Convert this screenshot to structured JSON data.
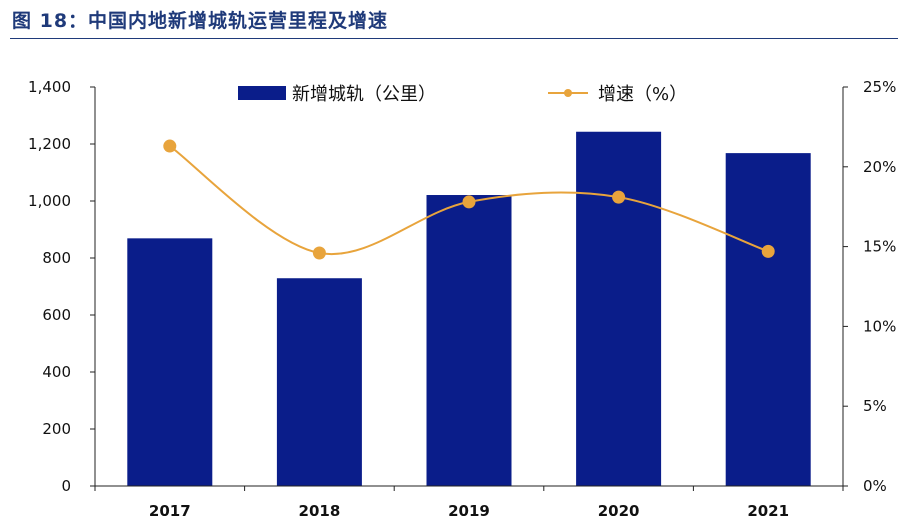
{
  "figure": {
    "title": "图 18：中国内地新增城轨运营里程及增速"
  },
  "colors": {
    "bar": "#0a1d8a",
    "line": "#e8a43c",
    "title": "#1f3a7a",
    "axis": "#222222"
  },
  "chart_data": {
    "type": "bar",
    "title": "图 18：中国内地新增城轨运营里程及增速",
    "categories": [
      "2017",
      "2018",
      "2019",
      "2020",
      "2021"
    ],
    "series": [
      {
        "name": "新增城轨（公里）",
        "type": "bar",
        "axis": "left",
        "values": [
          869,
          729,
          1021,
          1243,
          1168
        ]
      },
      {
        "name": "增速（%）",
        "type": "line",
        "axis": "right",
        "values": [
          21.3,
          14.6,
          17.8,
          18.1,
          14.7
        ]
      }
    ],
    "y_left": {
      "ylim": [
        0,
        1400
      ],
      "ticks": [
        "0",
        "200",
        "400",
        "600",
        "800",
        "1,000",
        "1,200",
        "1,400"
      ],
      "tick_values": [
        0,
        200,
        400,
        600,
        800,
        1000,
        1200,
        1400
      ]
    },
    "y_right": {
      "ylim": [
        0,
        25
      ],
      "ticks": [
        "0%",
        "5%",
        "10%",
        "15%",
        "20%",
        "25%"
      ],
      "tick_values": [
        0,
        5,
        10,
        15,
        20,
        25
      ]
    },
    "grid": false,
    "legend": "top-center",
    "line_smooth": true
  }
}
